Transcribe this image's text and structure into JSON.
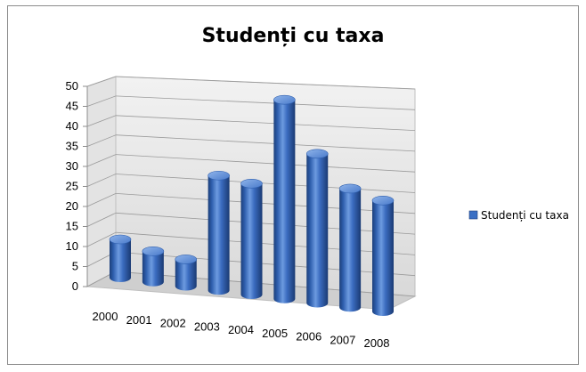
{
  "chart_data": {
    "type": "bar",
    "title": "Studenți cu taxa",
    "categories": [
      "2000",
      "2001",
      "2002",
      "2003",
      "2004",
      "2005",
      "2006",
      "2007",
      "2008"
    ],
    "series": [
      {
        "name": "Studenți cu taxa",
        "values": [
          10,
          8,
          7,
          30,
          29,
          52,
          39,
          31,
          29
        ],
        "color": "#3a6fc4"
      }
    ],
    "ylim": [
      0,
      50
    ],
    "yticks": [
      0,
      5,
      10,
      15,
      20,
      25,
      30,
      35,
      40,
      45,
      50
    ],
    "grid": true,
    "legend": "right"
  }
}
